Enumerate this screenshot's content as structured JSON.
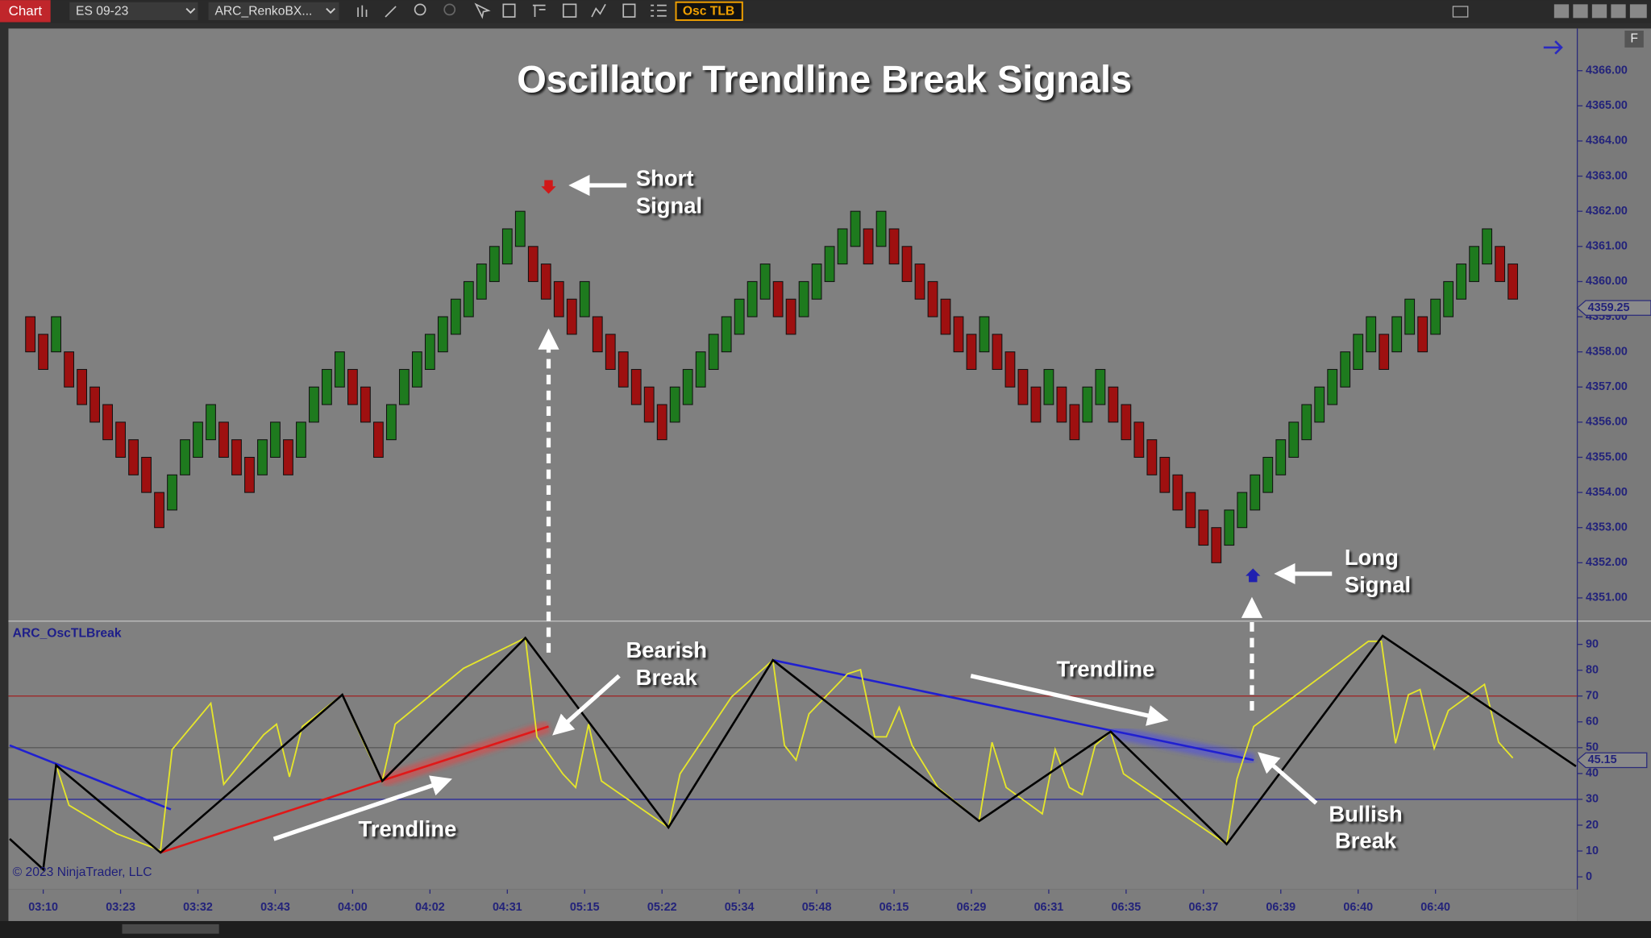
{
  "toolbar": {
    "tab": "Chart",
    "instrument": "ES 09-23",
    "bar_type": "ARC_RenkoBX...",
    "indicator_button": "Osc TLB",
    "panel_button": "F"
  },
  "chart_data": [
    {
      "type": "renko",
      "title": "Oscillator Trendline Break Signals",
      "open": [
        4359,
        4358.5,
        4358,
        4358,
        4357.5,
        4357,
        4356.5,
        4356,
        4355.5,
        4355,
        4354,
        4353.5,
        4354.5,
        4355,
        4355.5,
        4356,
        4355.5,
        4355,
        4354.5,
        4355,
        4355.5,
        4355,
        4356,
        4356.5,
        4357,
        4357.5,
        4357,
        4356,
        4355.5,
        4356.5,
        4357,
        4357.5,
        4358,
        4358.5,
        4359,
        4359.5,
        4360,
        4360.5,
        4361,
        4361,
        4360.5,
        4360,
        4359.5,
        4359,
        4359,
        4358.5,
        4358,
        4357.5,
        4357,
        4356.5,
        4356,
        4356.5,
        4357,
        4357.5,
        4358,
        4358.5,
        4359,
        4359.5,
        4360,
        4359.5,
        4359,
        4359.5,
        4360,
        4360.5,
        4361,
        4361.5,
        4361,
        4361.5,
        4361,
        4360.5,
        4360,
        4359.5,
        4359,
        4358.5,
        4358,
        4358.5,
        4358,
        4357.5,
        4357,
        4356.5,
        4357,
        4356.5,
        4356,
        4356.5,
        4357,
        4356.5,
        4356,
        4355.5,
        4355,
        4354.5,
        4354,
        4353.5,
        4353,
        4352.5,
        4353,
        4353.5,
        4354,
        4354.5,
        4355,
        4355.5,
        4356,
        4356.5,
        4357,
        4357.5,
        4358,
        4358.5,
        4358,
        4358.5,
        4359,
        4358.5,
        4359,
        4359.5,
        4360,
        4360.5,
        4361,
        4360.5
      ],
      "close": [
        4358,
        4357.5,
        4359,
        4357,
        4356.5,
        4356,
        4355.5,
        4355,
        4354.5,
        4354,
        4353,
        4354.5,
        4355.5,
        4356,
        4356.5,
        4355,
        4354.5,
        4354,
        4355.5,
        4356,
        4354.5,
        4356,
        4357,
        4357.5,
        4358,
        4356.5,
        4356,
        4355,
        4356.5,
        4357.5,
        4358,
        4358.5,
        4359,
        4359.5,
        4360,
        4360.5,
        4361,
        4361.5,
        4362,
        4360,
        4359.5,
        4359,
        4358.5,
        4360,
        4358,
        4357.5,
        4357,
        4356.5,
        4356,
        4355.5,
        4357,
        4357.5,
        4358,
        4358.5,
        4359,
        4359.5,
        4360,
        4360.5,
        4359,
        4358.5,
        4360,
        4360.5,
        4361,
        4361.5,
        4362,
        4360.5,
        4362,
        4360.5,
        4360,
        4359.5,
        4359,
        4358.5,
        4358,
        4357.5,
        4359,
        4357.5,
        4357,
        4356.5,
        4356,
        4357.5,
        4356,
        4355.5,
        4357,
        4357.5,
        4356,
        4355.5,
        4355,
        4354.5,
        4354,
        4353.5,
        4353,
        4352.5,
        4352,
        4353.5,
        4354,
        4354.5,
        4355,
        4355.5,
        4356,
        4356.5,
        4357,
        4357.5,
        4358,
        4358.5,
        4359,
        4357.5,
        4359,
        4359.5,
        4358,
        4359.5,
        4360,
        4360.5,
        4361,
        4361.5,
        4360,
        4359.5
      ],
      "up_color": "#1e7a1e",
      "down_color": "#9e1010",
      "xlim": [
        -1.7,
        120
      ],
      "ylim": [
        4350.34,
        4367.2
      ],
      "yticks": [
        {
          "value": 4351,
          "label": "4351.00"
        },
        {
          "value": 4352,
          "label": "4352.00"
        },
        {
          "value": 4353,
          "label": "4353.00"
        },
        {
          "value": 4354,
          "label": "4354.00"
        },
        {
          "value": 4355,
          "label": "4355.00"
        },
        {
          "value": 4356,
          "label": "4356.00"
        },
        {
          "value": 4357,
          "label": "4357.00"
        },
        {
          "value": 4358,
          "label": "4358.00"
        },
        {
          "value": 4359,
          "label": "4359.00"
        },
        {
          "value": 4360,
          "label": "4360.00"
        },
        {
          "value": 4361,
          "label": "4361.00"
        },
        {
          "value": 4362,
          "label": "4362.00"
        },
        {
          "value": 4363,
          "label": "4363.00"
        },
        {
          "value": 4364,
          "label": "4364.00"
        },
        {
          "value": 4365,
          "label": "4365.00"
        },
        {
          "value": 4366,
          "label": "4366.00"
        }
      ],
      "last_price": {
        "value": 4359.25,
        "label": "4359.25"
      },
      "annotations": [
        {
          "lines": [
            "Short",
            "Signal"
          ]
        },
        {
          "lines": [
            "Long",
            "Signal"
          ]
        }
      ]
    },
    {
      "type": "line",
      "indicator_label": "ARC_OscTLBreak",
      "copyright": "© 2023 NinjaTrader, LLC",
      "xlim": [
        -1.7,
        120
      ],
      "ylim": [
        -4.9,
        98.2
      ],
      "yticks": [
        0,
        10,
        20,
        30,
        40,
        50,
        60,
        70,
        80,
        90
      ],
      "xticks": [
        {
          "value": 1,
          "label": "03:10"
        },
        {
          "value": 7,
          "label": "03:23"
        },
        {
          "value": 13,
          "label": "03:32"
        },
        {
          "value": 19,
          "label": "03:43"
        },
        {
          "value": 25,
          "label": "04:00"
        },
        {
          "value": 31,
          "label": "04:02"
        },
        {
          "value": 37,
          "label": "04:31"
        },
        {
          "value": 43,
          "label": "05:15"
        },
        {
          "value": 49,
          "label": "05:22"
        },
        {
          "value": 55,
          "label": "05:34"
        },
        {
          "value": 61,
          "label": "05:48"
        },
        {
          "value": 67,
          "label": "06:15"
        },
        {
          "value": 73,
          "label": "06:29"
        },
        {
          "value": 79,
          "label": "06:31"
        },
        {
          "value": 85,
          "label": "06:35"
        },
        {
          "value": 91,
          "label": "06:37"
        },
        {
          "value": 97,
          "label": "06:39"
        },
        {
          "value": 103,
          "label": "06:40"
        },
        {
          "value": 109,
          "label": "06:40"
        }
      ],
      "hlines": [
        {
          "value": 70,
          "color": "#a02020"
        },
        {
          "value": 50,
          "color": "#5a5a5a"
        },
        {
          "value": 30,
          "color": "#2a2a9a"
        }
      ],
      "last_value": {
        "value": 45.15,
        "label": "45.15"
      },
      "trendlines": [
        {
          "color": "#2020d0",
          "x": [
            -1.6,
            10.9
          ],
          "values": [
            50.9,
            26.1
          ]
        },
        {
          "color": "#e01818",
          "x": [
            10.1,
            40.2
          ],
          "values": [
            9.4,
            58.2
          ]
        },
        {
          "color": "#2020d0",
          "x": [
            57.6,
            94.9
          ],
          "values": [
            83.9,
            45.2
          ]
        }
      ],
      "highlights": [
        {
          "color": "#ff3030",
          "x": [
            27.3,
            40.2
          ],
          "values": [
            37.1,
            58.2
          ]
        },
        {
          "color": "#4040ff",
          "x": [
            83.8,
            94.9
          ],
          "values": [
            56.2,
            45.2
          ]
        }
      ],
      "series": [
        {
          "color": "#e6e62a",
          "x": [
            2.0,
            3.0,
            6.7,
            10.1,
            11.0,
            14.0,
            15.0,
            18.1,
            19.1,
            20.1,
            21.1,
            24.2,
            26.1,
            27.3,
            28.3,
            33.6,
            38.4,
            39.3,
            41.3,
            42.3,
            43.3,
            44.3,
            49.5,
            50.4,
            54.4,
            57.6,
            58.5,
            59.4,
            60.4,
            63.4,
            64.4,
            65.5,
            66.4,
            67.4,
            68.4,
            70.4,
            73.6,
            74.6,
            75.7,
            78.5,
            79.5,
            80.6,
            81.6,
            82.6,
            83.8,
            84.8,
            92.8,
            93.6,
            94.9,
            103.8,
            104.8,
            105.9,
            106.9,
            107.8,
            108.9,
            110.0,
            112.8,
            113.9,
            115.0
          ],
          "values": [
            43.2,
            27.7,
            16.7,
            10.2,
            49.3,
            67.2,
            35.8,
            55.0,
            59.1,
            38.7,
            58.2,
            70.5,
            49.3,
            37.1,
            59.1,
            80.7,
            92.5,
            54.2,
            39.9,
            34.6,
            59.1,
            37.1,
            19.1,
            39.9,
            69.7,
            83.9,
            50.9,
            45.2,
            63.1,
            78.6,
            80.2,
            54.2,
            54.2,
            65.6,
            50.9,
            34.6,
            21.6,
            52.1,
            34.6,
            24.4,
            49.3,
            34.6,
            31.8,
            50.9,
            56.2,
            39.9,
            12.6,
            37.9,
            58.2,
            91.2,
            91.2,
            51.7,
            70.5,
            72.5,
            49.7,
            64.4,
            74.5,
            52.1,
            46.0
          ]
        },
        {
          "color": "#000000",
          "x": [
            -1.6,
            1.0,
            2.0,
            10.1,
            24.2,
            27.3,
            38.4,
            49.5,
            57.6,
            73.6,
            83.8,
            92.8,
            104.9,
            119.9
          ],
          "values": [
            14.7,
            2.9,
            43.2,
            9.4,
            70.5,
            37.1,
            92.5,
            19.1,
            83.9,
            21.6,
            56.2,
            12.6,
            93.3,
            42.8
          ]
        }
      ],
      "annotations": [
        {
          "lines": [
            "Bearish",
            "Break"
          ]
        },
        {
          "lines": [
            "Trendline"
          ]
        },
        {
          "lines": [
            "Trendline"
          ]
        },
        {
          "lines": [
            "Bullish",
            "Break"
          ]
        }
      ]
    }
  ]
}
